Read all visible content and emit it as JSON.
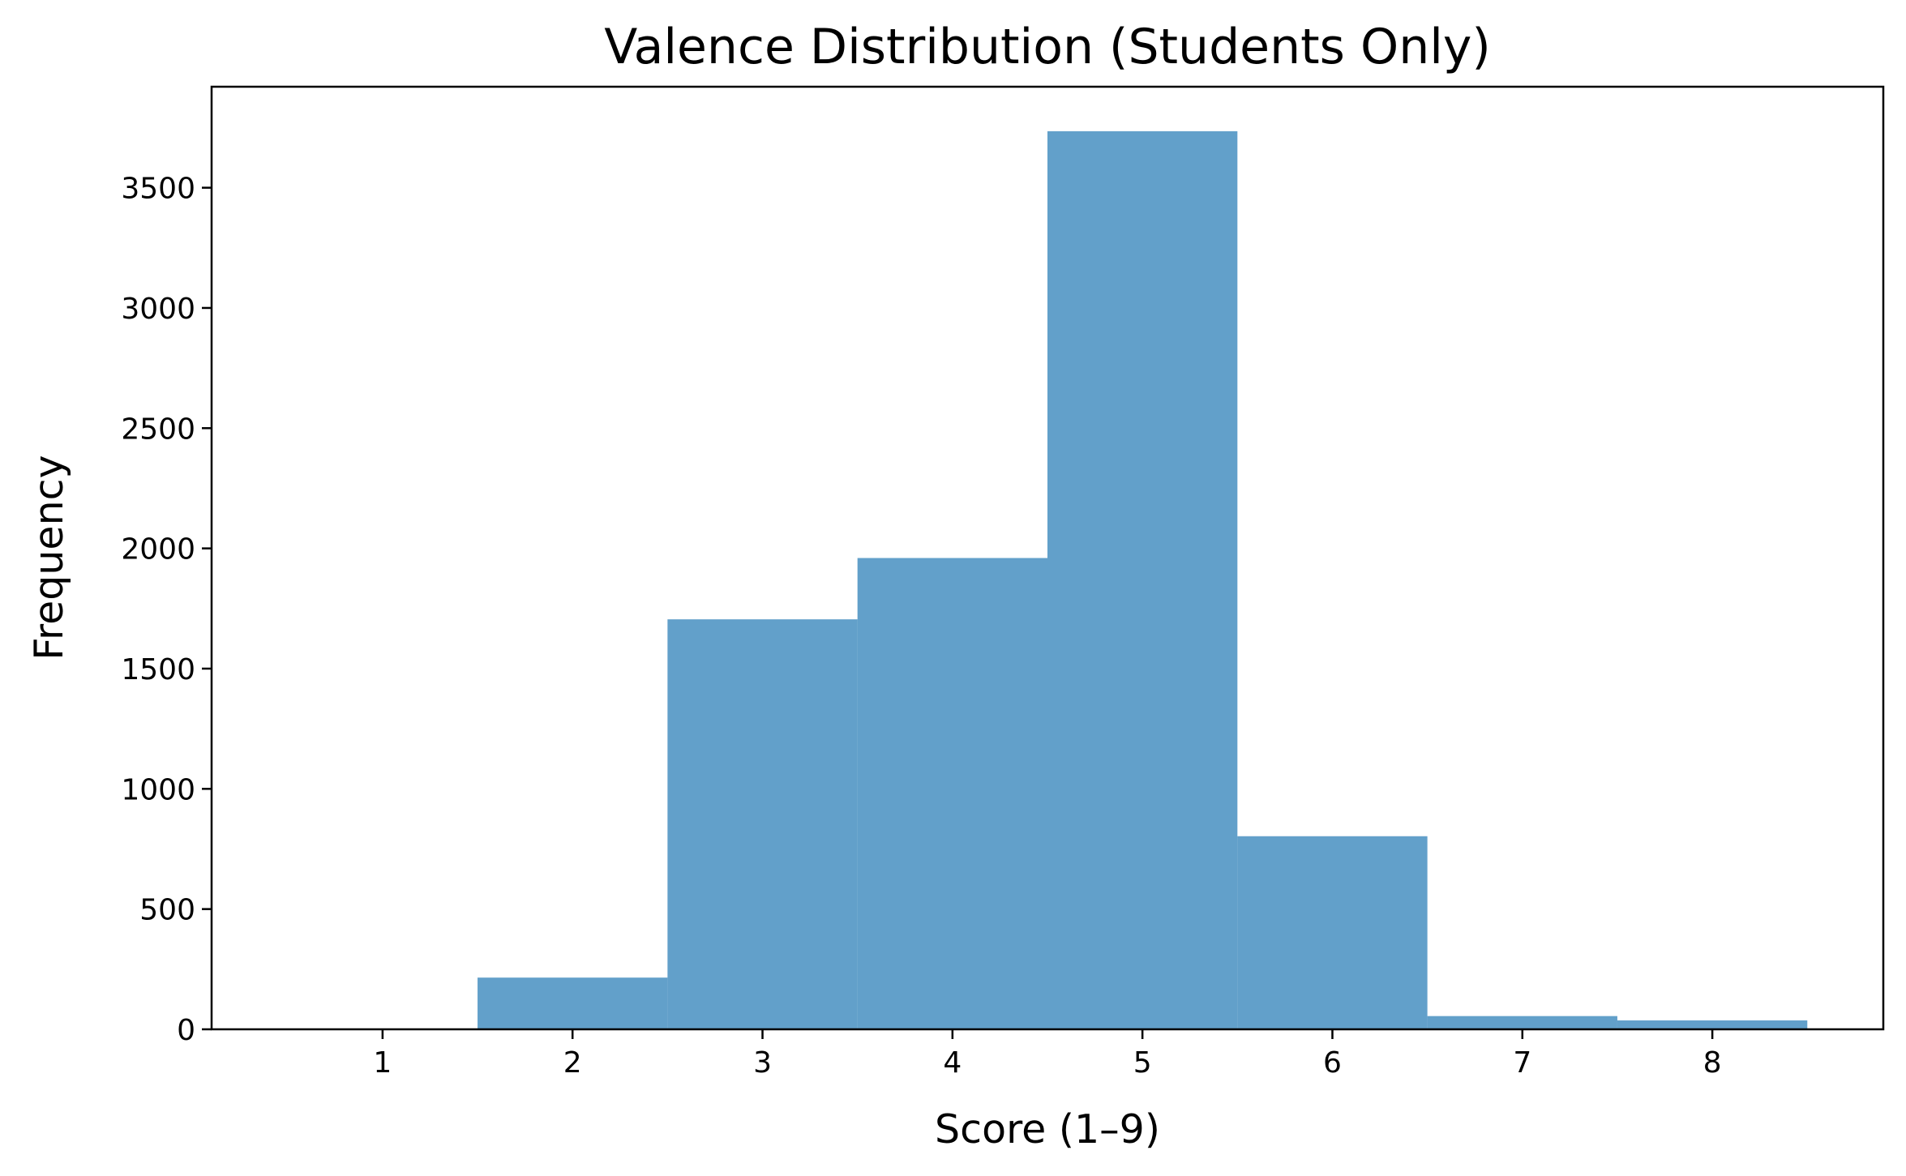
{
  "chart_data": {
    "type": "bar",
    "title": "Valence Distribution (Students Only)",
    "xlabel": "Score (1–9)",
    "ylabel": "Frequency",
    "bins": [
      {
        "x0": 0.5,
        "x1": 1.5,
        "value": 0
      },
      {
        "x0": 1.5,
        "x1": 2.5,
        "value": 215
      },
      {
        "x0": 2.5,
        "x1": 3.5,
        "value": 1705
      },
      {
        "x0": 3.5,
        "x1": 4.5,
        "value": 1960
      },
      {
        "x0": 4.5,
        "x1": 5.5,
        "value": 3735
      },
      {
        "x0": 5.5,
        "x1": 6.5,
        "value": 803
      },
      {
        "x0": 6.5,
        "x1": 7.5,
        "value": 55
      },
      {
        "x0": 7.5,
        "x1": 8.5,
        "value": 37
      }
    ],
    "xlim": [
      0.1,
      8.9
    ],
    "ylim": [
      0,
      3920
    ],
    "xticks": [
      1,
      2,
      3,
      4,
      5,
      6,
      7,
      8
    ],
    "yticks": [
      0,
      500,
      1000,
      1500,
      2000,
      2500,
      3000,
      3500
    ],
    "bar_color": "#1f77b4",
    "bar_opacity": 0.7,
    "grid": false,
    "legend": false
  }
}
